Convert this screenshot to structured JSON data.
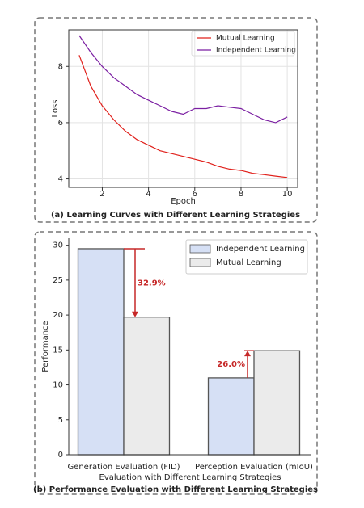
{
  "chart_data": [
    {
      "type": "line",
      "title": "(a) Learning Curves with Different Learning Strategies",
      "x_label": "Epoch",
      "y_label": "Loss",
      "x": [
        1,
        1.5,
        2,
        2.5,
        3,
        3.5,
        4,
        4.5,
        5,
        5.5,
        6,
        6.5,
        7,
        7.5,
        8,
        8.5,
        9,
        9.5,
        10
      ],
      "series": [
        {
          "name": "Mutual Learning",
          "color": "#e0201b",
          "values": [
            8.4,
            7.3,
            6.6,
            6.1,
            5.7,
            5.4,
            5.2,
            5.0,
            4.9,
            4.8,
            4.7,
            4.6,
            4.45,
            4.35,
            4.3,
            4.2,
            4.15,
            4.1,
            4.05
          ]
        },
        {
          "name": "Independent Learning",
          "color": "#7b1fa2",
          "values": [
            9.1,
            8.5,
            8.0,
            7.6,
            7.3,
            7.0,
            6.8,
            6.6,
            6.4,
            6.3,
            6.5,
            6.5,
            6.6,
            6.55,
            6.5,
            6.3,
            6.1,
            6.0,
            6.2
          ]
        }
      ],
      "xlim": [
        0.55,
        10.45
      ],
      "xticks": [
        2,
        4,
        6,
        8,
        10
      ],
      "ylim": [
        3.7,
        9.3
      ],
      "yticks": [
        4,
        6,
        8
      ],
      "grid": true,
      "legend": "upper-right"
    },
    {
      "type": "bar",
      "title": "(b) Performance Evaluation with Different Learning Strategies",
      "x_label": "Evaluation with Different Learning Strategies",
      "y_label": "Performance",
      "categories": [
        "Generation Evaluation (FID)",
        "Perception Evaluation (mIoU)"
      ],
      "series": [
        {
          "name": "Independent Learning",
          "color": "#d6e0f5",
          "values": [
            29.5,
            11.0
          ]
        },
        {
          "name": "Mutual Learning",
          "color": "#ebebeb",
          "values": [
            19.7,
            14.9
          ]
        }
      ],
      "annotations": [
        "32.9%",
        "26.0%"
      ],
      "annotation_color": "#c62828",
      "ylim": [
        0,
        31
      ],
      "yticks": [
        0,
        5,
        10,
        15,
        20,
        25,
        30
      ],
      "grid": false,
      "legend": "upper-right"
    }
  ]
}
